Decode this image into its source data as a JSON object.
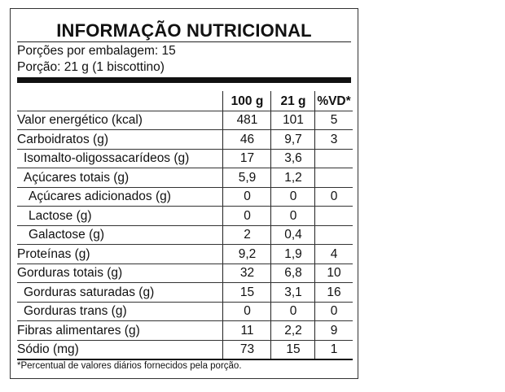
{
  "title": "INFORMAÇÃO NUTRICIONAL",
  "servings_per_package": "Porções por embalagem: 15",
  "serving_size": "Porção: 21 g (1 biscottino)",
  "columns": [
    "",
    "100 g",
    "21 g",
    "%VD*"
  ],
  "rows": [
    {
      "name": "Valor energético (kcal)",
      "v100": "481",
      "v21": "101",
      "vd": "5",
      "indent": 0
    },
    {
      "name": "Carboidratos (g)",
      "v100": "46",
      "v21": "9,7",
      "vd": "3",
      "indent": 0
    },
    {
      "name": "Isomalto-oligossacarídeos (g)",
      "v100": "17",
      "v21": "3,6",
      "vd": "",
      "indent": 1
    },
    {
      "name": "Açúcares totais (g)",
      "v100": "5,9",
      "v21": "1,2",
      "vd": "",
      "indent": 1
    },
    {
      "name": "Açúcares adicionados (g)",
      "v100": "0",
      "v21": "0",
      "vd": "0",
      "indent": 2
    },
    {
      "name": "Lactose (g)",
      "v100": "0",
      "v21": "0",
      "vd": "",
      "indent": 2
    },
    {
      "name": "Galactose (g)",
      "v100": "2",
      "v21": "0,4",
      "vd": "",
      "indent": 2
    },
    {
      "name": "Proteínas (g)",
      "v100": "9,2",
      "v21": "1,9",
      "vd": "4",
      "indent": 0
    },
    {
      "name": "Gorduras totais (g)",
      "v100": "32",
      "v21": "6,8",
      "vd": "10",
      "indent": 0
    },
    {
      "name": "Gorduras saturadas (g)",
      "v100": "15",
      "v21": "3,1",
      "vd": "16",
      "indent": 1
    },
    {
      "name": "Gorduras trans (g)",
      "v100": "0",
      "v21": "0",
      "vd": "0",
      "indent": 1
    },
    {
      "name": "Fibras alimentares (g)",
      "v100": "11",
      "v21": "2,2",
      "vd": "9",
      "indent": 0
    },
    {
      "name": "Sódio (mg)",
      "v100": "73",
      "v21": "15",
      "vd": "1",
      "indent": 0
    }
  ],
  "footnote": "*Percentual de valores diários fornecidos pela porção."
}
